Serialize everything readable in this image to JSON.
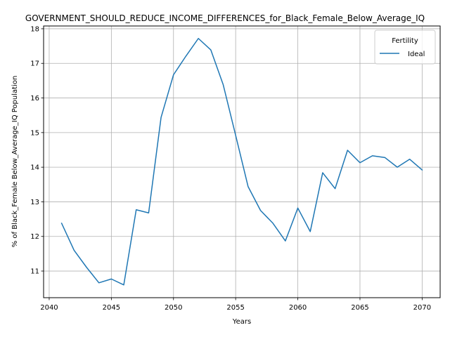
{
  "chart_data": {
    "type": "line",
    "title": "GOVERNMENT_SHOULD_REDUCE_INCOME_DIFFERENCES_for_Black_Female_Below_Average_IQ",
    "xlabel": "Years",
    "ylabel": "% of Black_Female Below_Average_IQ Population",
    "xlim": [
      2039.55,
      2071.45
    ],
    "ylim": [
      10.23,
      18.08
    ],
    "x_ticks": [
      2040,
      2045,
      2050,
      2055,
      2060,
      2065,
      2070
    ],
    "y_ticks": [
      11,
      12,
      13,
      14,
      15,
      16,
      17,
      18
    ],
    "grid": true,
    "legend": {
      "title": "Fertility",
      "placement": "upper right"
    },
    "series": [
      {
        "name": "Ideal",
        "color": "#1f77b4",
        "x": [
          2041,
          2042,
          2043,
          2044,
          2045,
          2046,
          2047,
          2048,
          2049,
          2050,
          2051,
          2052,
          2053,
          2054,
          2055,
          2056,
          2057,
          2058,
          2059,
          2060,
          2061,
          2062,
          2063,
          2064,
          2065,
          2066,
          2067,
          2068,
          2069,
          2070
        ],
        "values": [
          12.38,
          11.6,
          11.11,
          10.66,
          10.77,
          10.6,
          12.77,
          12.68,
          15.44,
          16.67,
          17.21,
          17.72,
          17.39,
          16.38,
          14.92,
          13.44,
          12.75,
          12.38,
          11.87,
          12.82,
          12.14,
          13.84,
          13.38,
          14.49,
          14.13,
          14.33,
          14.28,
          14.0,
          14.23,
          13.92
        ]
      }
    ]
  }
}
